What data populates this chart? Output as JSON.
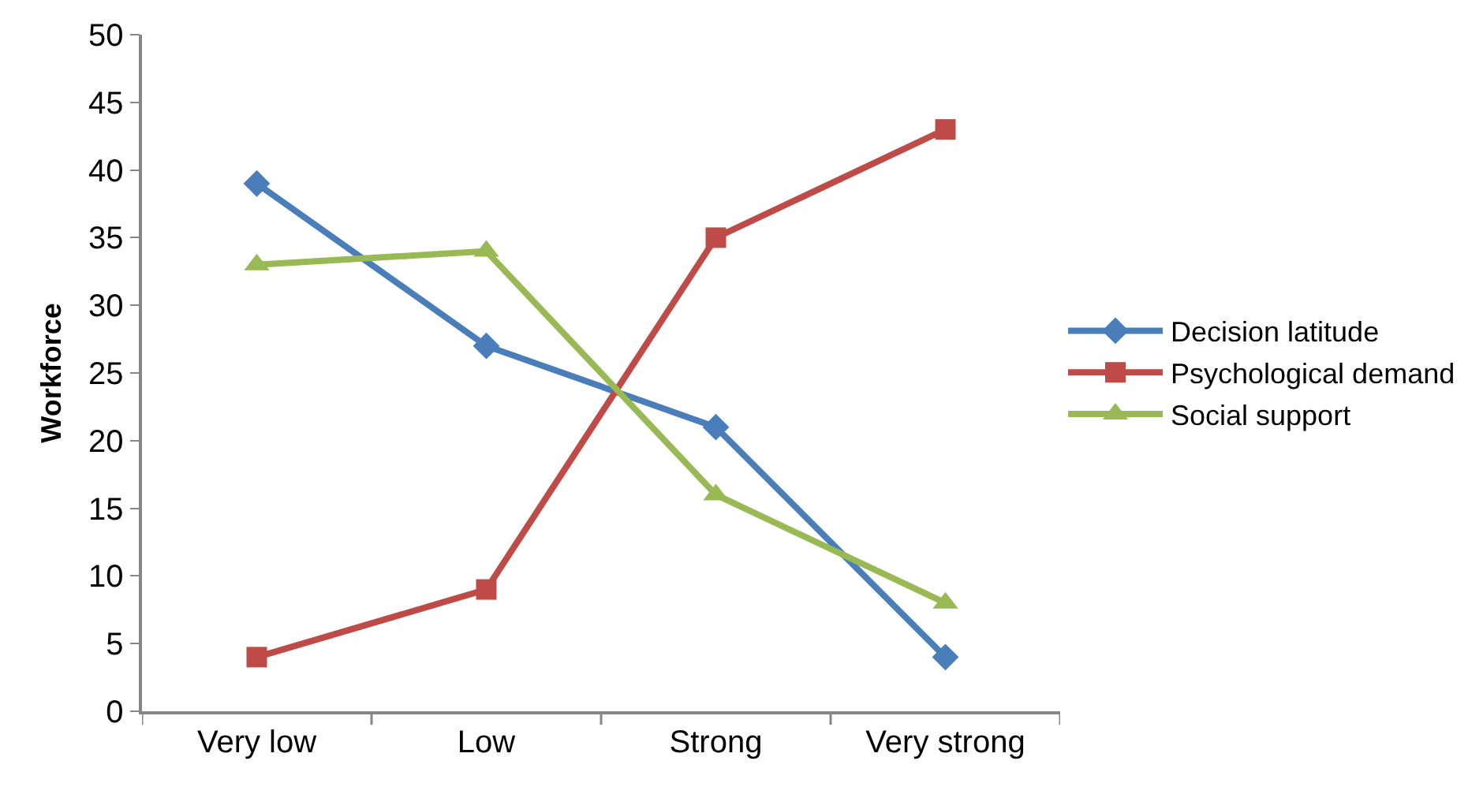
{
  "chart_data": {
    "type": "line",
    "ylabel": "Workforce",
    "categories": [
      "Very low",
      "Low",
      "Strong",
      "Very strong"
    ],
    "series": [
      {
        "name": "Decision latitude",
        "color": "#4a7ebb",
        "marker": "diamond",
        "values": [
          39,
          27,
          21,
          4
        ]
      },
      {
        "name": "Psychological demand",
        "color": "#be4b48",
        "marker": "square",
        "values": [
          4,
          9,
          35,
          43
        ]
      },
      {
        "name": "Social support",
        "color": "#98b954",
        "marker": "triangle",
        "values": [
          33,
          34,
          16,
          8
        ]
      }
    ],
    "ylim": [
      0,
      50
    ],
    "yticks": [
      0,
      5,
      10,
      15,
      20,
      25,
      30,
      35,
      40,
      45,
      50
    ],
    "grid": false,
    "legend": "right",
    "line_style": "solid"
  }
}
